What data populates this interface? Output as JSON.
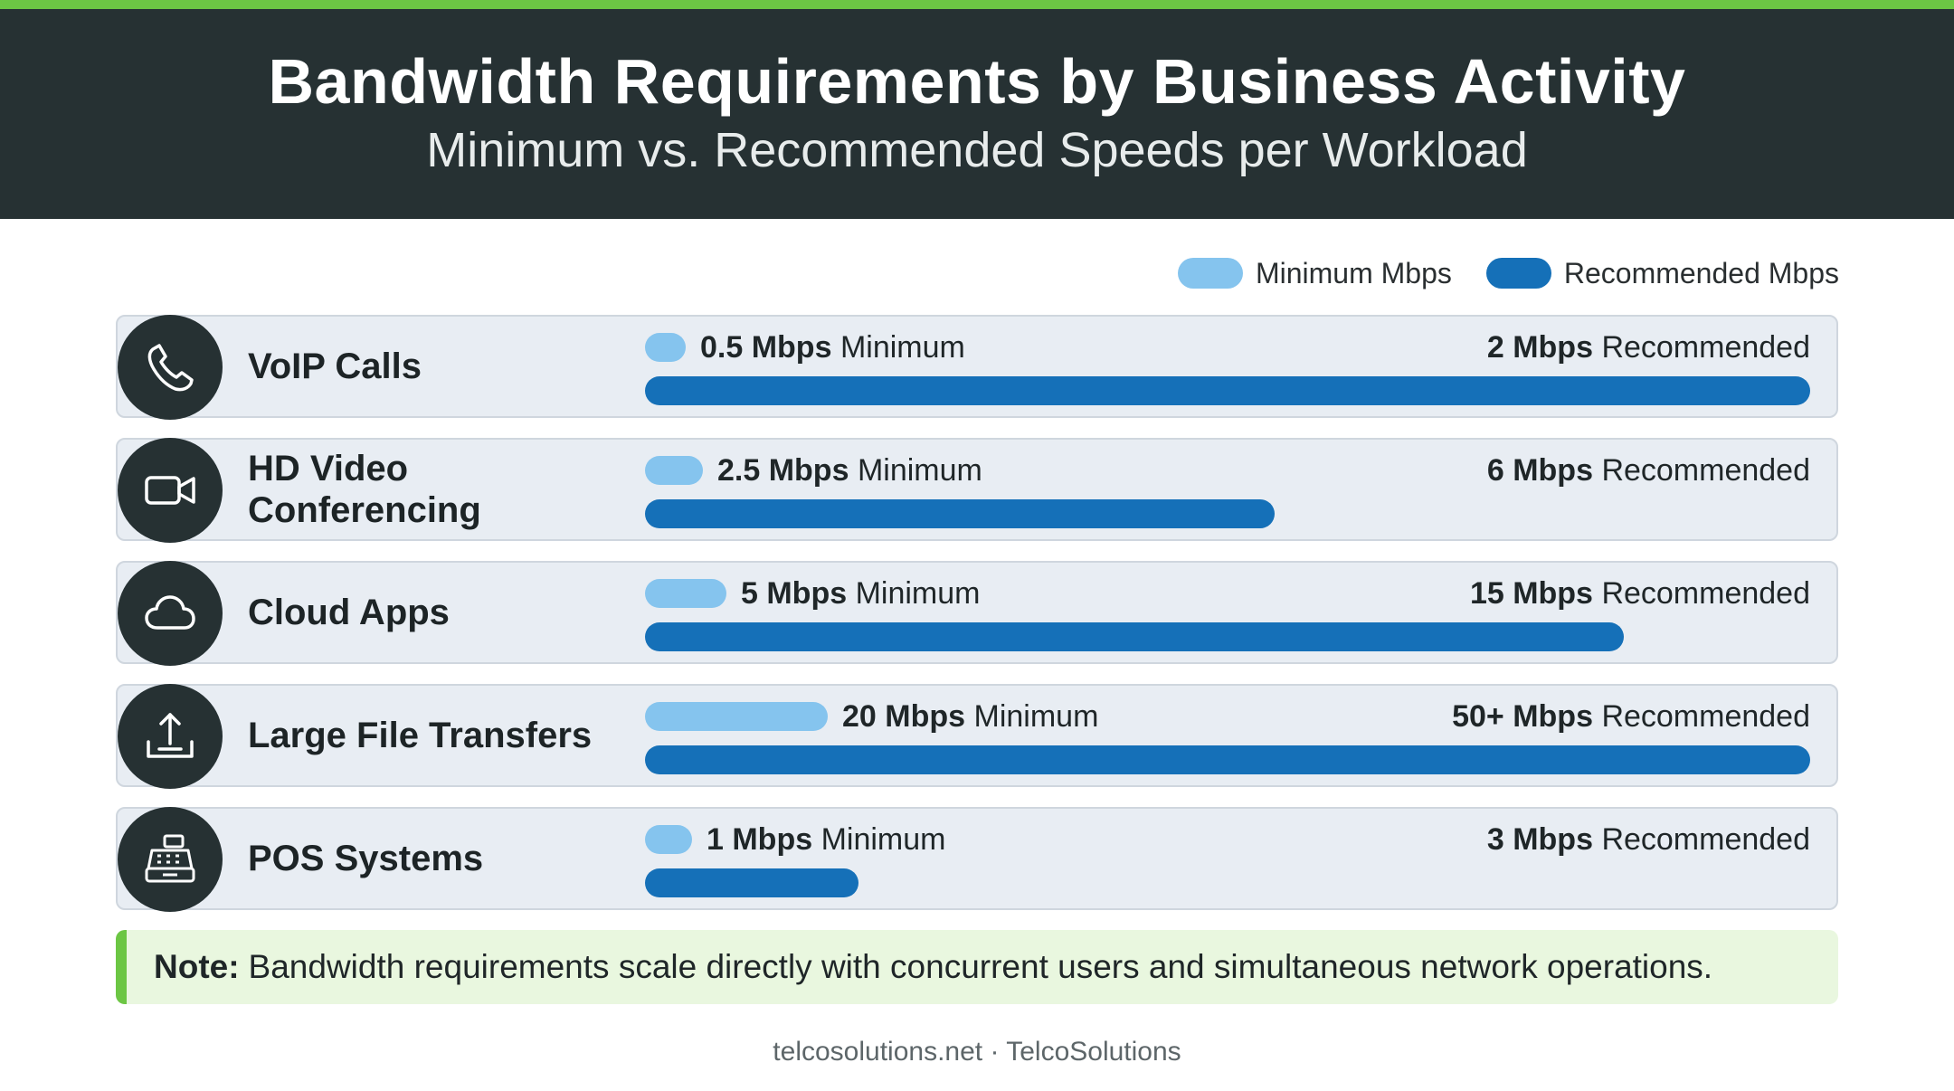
{
  "header": {
    "title": "Bandwidth Requirements by Business Activity",
    "subtitle": "Minimum vs. Recommended Speeds per Workload"
  },
  "legend": {
    "minimum": "Minimum Mbps",
    "recommended": "Recommended Mbps",
    "minimum_color": "#85c4ee",
    "recommended_color": "#1570b8"
  },
  "chart_data": {
    "type": "bar",
    "title": "Bandwidth Requirements by Business Activity",
    "subtitle": "Minimum vs. Recommended Speeds per Workload",
    "categories": [
      "VoIP Calls",
      "HD Video Conferencing",
      "Cloud Apps",
      "Large File Transfers",
      "POS Systems"
    ],
    "series": [
      {
        "name": "Minimum Mbps",
        "values": [
          0.5,
          2.5,
          5,
          20,
          1
        ]
      },
      {
        "name": "Recommended Mbps",
        "values": [
          2,
          6,
          15,
          50,
          3
        ]
      }
    ],
    "rows": [
      {
        "label": "VoIP Calls",
        "icon": "phone-icon",
        "min_num": "0.5 Mbps",
        "min_word": "Minimum",
        "rec_num": "2 Mbps",
        "rec_word": "Recommended",
        "min_fill": 0.035,
        "rec_fill": 1.0
      },
      {
        "label": "HD Video Conferencing",
        "icon": "video-camera-icon",
        "min_num": "2.5 Mbps",
        "min_word": "Minimum",
        "rec_num": "6 Mbps",
        "rec_word": "Recommended",
        "min_fill": 0.05,
        "rec_fill": 0.54
      },
      {
        "label": "Cloud Apps",
        "icon": "cloud-icon",
        "min_num": "5 Mbps",
        "min_word": "Minimum",
        "rec_num": "15 Mbps",
        "rec_word": "Recommended",
        "min_fill": 0.07,
        "rec_fill": 0.84
      },
      {
        "label": "Large File Transfers",
        "icon": "upload-icon",
        "min_num": "20 Mbps",
        "min_word": "Minimum",
        "rec_num": "50+ Mbps",
        "rec_word": "Recommended",
        "min_fill": 0.157,
        "rec_fill": 1.0
      },
      {
        "label": "POS Systems",
        "icon": "cash-register-icon",
        "min_num": "1 Mbps",
        "min_word": "Minimum",
        "rec_num": "3 Mbps",
        "rec_word": "Recommended",
        "min_fill": 0.04,
        "rec_fill": 0.183
      }
    ],
    "legend_position": "top-right",
    "grid": false
  },
  "note": {
    "label": "Note:",
    "text": "Bandwidth requirements scale directly with concurrent users and simultaneous network operations."
  },
  "footer": "telcosolutions.net · TelcoSolutions"
}
